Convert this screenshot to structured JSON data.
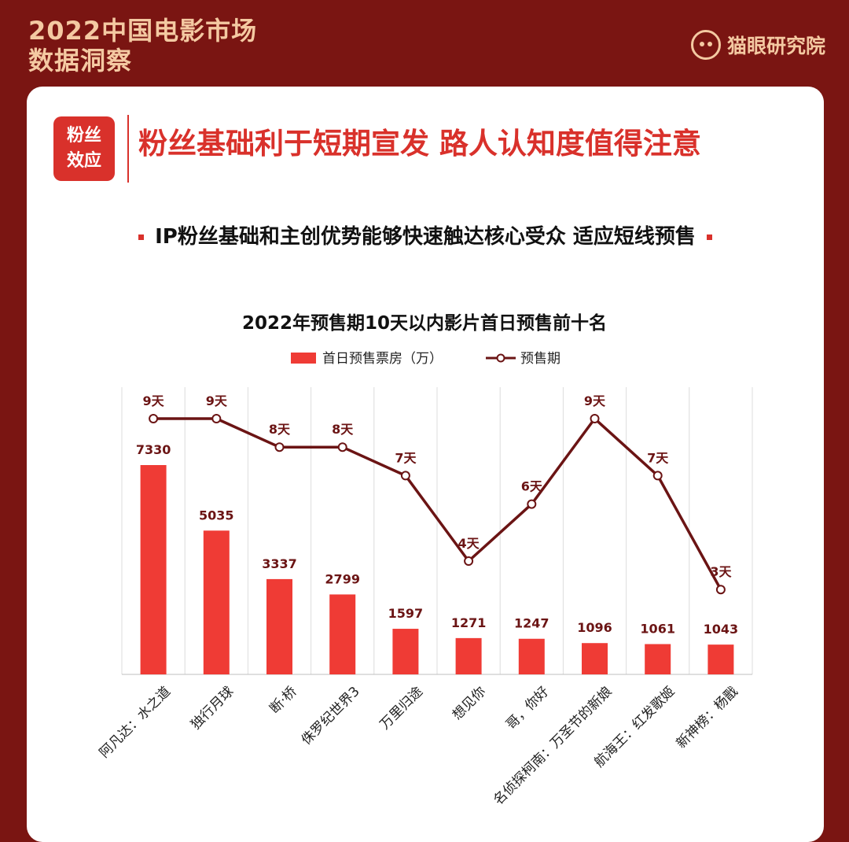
{
  "header": {
    "title_line1": "2022中国电影市场",
    "title_line2": "数据洞察",
    "brand": "猫眼研究院"
  },
  "tag": {
    "line1": "粉丝",
    "line2": "效应"
  },
  "headline": "粉丝基础利于短期宣发 路人认知度值得注意",
  "subtitle": "IP粉丝基础和主创优势能够快速触达核心受众 适应短线预售",
  "colors": {
    "bar": "#ef3b35",
    "line": "#6b1414",
    "accent": "#d9312b",
    "background": "#7a1512"
  },
  "chart_data": {
    "type": "bar",
    "title": "2022年预售期10天以内影片首日预售前十名",
    "categories": [
      "阿凡达：水之道",
      "独行月球",
      "断·桥",
      "侏罗纪世界3",
      "万里归途",
      "想见你",
      "哥，你好",
      "名侦探柯南：万圣节的新娘",
      "航海王：红发歌姬",
      "新神榜：杨戬"
    ],
    "series": [
      {
        "name": "首日预售票房（万）",
        "type": "bar",
        "values": [
          7330,
          5035,
          3337,
          2799,
          1597,
          1271,
          1247,
          1096,
          1061,
          1043
        ]
      },
      {
        "name": "预售期",
        "type": "line",
        "values": [
          9,
          9,
          8,
          8,
          7,
          4,
          6,
          9,
          7,
          3
        ],
        "labels": [
          "9天",
          "9天",
          "8天",
          "8天",
          "7天",
          "4天",
          "6天",
          "9天",
          "7天",
          "3天"
        ]
      }
    ],
    "grid": true,
    "legend": "top"
  }
}
